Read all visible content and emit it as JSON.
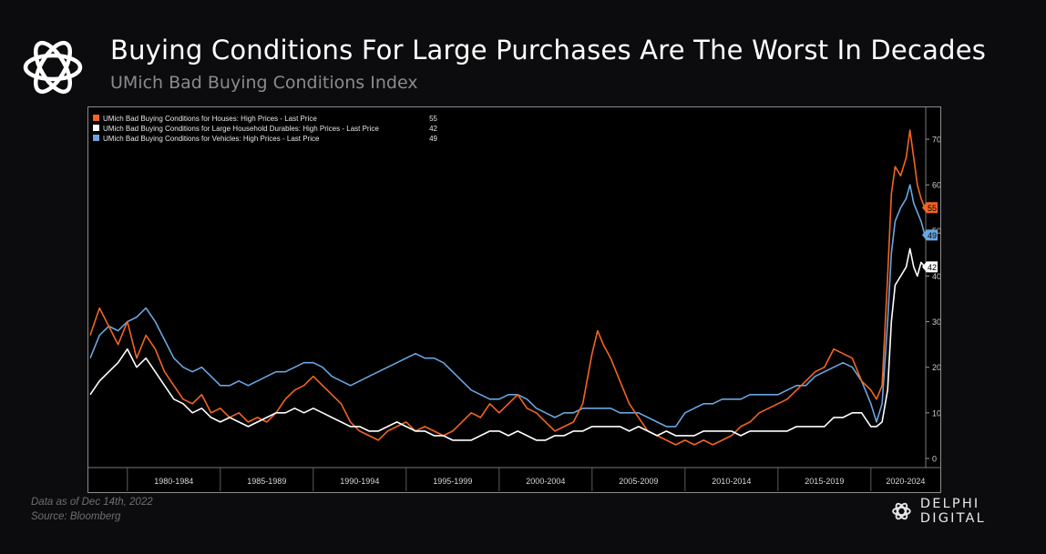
{
  "header": {
    "title": "Buying Conditions For Large Purchases Are The Worst In Decades",
    "subtitle": "UMich Bad Buying Conditions Index"
  },
  "footer": {
    "as_of": "Data as of Dec 14th, 2022",
    "source": "Source: Bloomberg",
    "brand": "DELPHI DIGITAL"
  },
  "colors": {
    "background": "#0c0c0e",
    "houses": "#f26522",
    "durables": "#ffffff",
    "vehicles": "#6aa6e0"
  },
  "chart_data": {
    "type": "line",
    "title": "",
    "xlabel": "",
    "ylabel": "",
    "x_range": [
      1978.0,
      2022.9
    ],
    "ylim": [
      -2,
      76
    ],
    "y_ticks": [
      0,
      10,
      20,
      30,
      40,
      50,
      60,
      70
    ],
    "y_axis_side": "right",
    "grid": false,
    "legend_position": "top-left",
    "x_tick_labels": [
      "1980-1984",
      "1985-1989",
      "1990-1994",
      "1995-1999",
      "2000-2004",
      "2005-2009",
      "2010-2014",
      "2015-2019",
      "2020-2024"
    ],
    "series": [
      {
        "name": "UMich Bad Buying Conditions for Houses: High Prices - Last Price",
        "last_value": "55",
        "color": "#f26522",
        "points": [
          [
            1978.0,
            27
          ],
          [
            1978.5,
            33
          ],
          [
            1979.0,
            29
          ],
          [
            1979.5,
            25
          ],
          [
            1980.0,
            30
          ],
          [
            1980.5,
            22
          ],
          [
            1981.0,
            27
          ],
          [
            1981.5,
            24
          ],
          [
            1982.0,
            19
          ],
          [
            1982.5,
            16
          ],
          [
            1983.0,
            13
          ],
          [
            1983.5,
            12
          ],
          [
            1984.0,
            14
          ],
          [
            1984.5,
            10
          ],
          [
            1985.0,
            11
          ],
          [
            1985.5,
            9
          ],
          [
            1986.0,
            10
          ],
          [
            1986.5,
            8
          ],
          [
            1987.0,
            9
          ],
          [
            1987.5,
            8
          ],
          [
            1988.0,
            10
          ],
          [
            1988.5,
            13
          ],
          [
            1989.0,
            15
          ],
          [
            1989.5,
            16
          ],
          [
            1990.0,
            18
          ],
          [
            1990.5,
            16
          ],
          [
            1991.0,
            14
          ],
          [
            1991.5,
            12
          ],
          [
            1992.0,
            8
          ],
          [
            1992.5,
            6
          ],
          [
            1993.0,
            5
          ],
          [
            1993.5,
            4
          ],
          [
            1994.0,
            6
          ],
          [
            1994.5,
            7
          ],
          [
            1995.0,
            8
          ],
          [
            1995.5,
            6
          ],
          [
            1996.0,
            7
          ],
          [
            1996.5,
            6
          ],
          [
            1997.0,
            5
          ],
          [
            1997.5,
            6
          ],
          [
            1998.0,
            8
          ],
          [
            1998.5,
            10
          ],
          [
            1999.0,
            9
          ],
          [
            1999.5,
            12
          ],
          [
            2000.0,
            10
          ],
          [
            2000.5,
            12
          ],
          [
            2001.0,
            14
          ],
          [
            2001.5,
            11
          ],
          [
            2002.0,
            10
          ],
          [
            2002.5,
            8
          ],
          [
            2003.0,
            6
          ],
          [
            2003.5,
            7
          ],
          [
            2004.0,
            8
          ],
          [
            2004.5,
            12
          ],
          [
            2005.0,
            23
          ],
          [
            2005.3,
            28
          ],
          [
            2005.6,
            25
          ],
          [
            2006.0,
            22
          ],
          [
            2006.5,
            17
          ],
          [
            2007.0,
            12
          ],
          [
            2007.5,
            9
          ],
          [
            2008.0,
            6
          ],
          [
            2008.5,
            5
          ],
          [
            2009.0,
            4
          ],
          [
            2009.5,
            3
          ],
          [
            2010.0,
            4
          ],
          [
            2010.5,
            3
          ],
          [
            2011.0,
            4
          ],
          [
            2011.5,
            3
          ],
          [
            2012.0,
            4
          ],
          [
            2012.5,
            5
          ],
          [
            2013.0,
            7
          ],
          [
            2013.5,
            8
          ],
          [
            2014.0,
            10
          ],
          [
            2014.5,
            11
          ],
          [
            2015.0,
            12
          ],
          [
            2015.5,
            13
          ],
          [
            2016.0,
            15
          ],
          [
            2016.5,
            17
          ],
          [
            2017.0,
            19
          ],
          [
            2017.5,
            20
          ],
          [
            2018.0,
            24
          ],
          [
            2018.5,
            23
          ],
          [
            2019.0,
            22
          ],
          [
            2019.5,
            17
          ],
          [
            2020.0,
            15
          ],
          [
            2020.3,
            13
          ],
          [
            2020.6,
            16
          ],
          [
            2020.9,
            40
          ],
          [
            2021.1,
            58
          ],
          [
            2021.3,
            64
          ],
          [
            2021.6,
            62
          ],
          [
            2021.9,
            66
          ],
          [
            2022.1,
            72
          ],
          [
            2022.3,
            66
          ],
          [
            2022.5,
            60
          ],
          [
            2022.7,
            57
          ],
          [
            2022.9,
            55
          ]
        ]
      },
      {
        "name": "UMich Bad Buying Conditions for Large Household Durables: High Prices - Last Price",
        "last_value": "42",
        "color": "#ffffff",
        "points": [
          [
            1978.0,
            14
          ],
          [
            1978.5,
            17
          ],
          [
            1979.0,
            19
          ],
          [
            1979.5,
            21
          ],
          [
            1980.0,
            24
          ],
          [
            1980.5,
            20
          ],
          [
            1981.0,
            22
          ],
          [
            1981.5,
            19
          ],
          [
            1982.0,
            16
          ],
          [
            1982.5,
            13
          ],
          [
            1983.0,
            12
          ],
          [
            1983.5,
            10
          ],
          [
            1984.0,
            11
          ],
          [
            1984.5,
            9
          ],
          [
            1985.0,
            8
          ],
          [
            1985.5,
            9
          ],
          [
            1986.0,
            8
          ],
          [
            1986.5,
            7
          ],
          [
            1987.0,
            8
          ],
          [
            1987.5,
            9
          ],
          [
            1988.0,
            10
          ],
          [
            1988.5,
            10
          ],
          [
            1989.0,
            11
          ],
          [
            1989.5,
            10
          ],
          [
            1990.0,
            11
          ],
          [
            1990.5,
            10
          ],
          [
            1991.0,
            9
          ],
          [
            1991.5,
            8
          ],
          [
            1992.0,
            7
          ],
          [
            1992.5,
            7
          ],
          [
            1993.0,
            6
          ],
          [
            1993.5,
            6
          ],
          [
            1994.0,
            7
          ],
          [
            1994.5,
            8
          ],
          [
            1995.0,
            7
          ],
          [
            1995.5,
            6
          ],
          [
            1996.0,
            6
          ],
          [
            1996.5,
            5
          ],
          [
            1997.0,
            5
          ],
          [
            1997.5,
            4
          ],
          [
            1998.0,
            4
          ],
          [
            1998.5,
            4
          ],
          [
            1999.0,
            5
          ],
          [
            1999.5,
            6
          ],
          [
            2000.0,
            6
          ],
          [
            2000.5,
            5
          ],
          [
            2001.0,
            6
          ],
          [
            2001.5,
            5
          ],
          [
            2002.0,
            4
          ],
          [
            2002.5,
            4
          ],
          [
            2003.0,
            5
          ],
          [
            2003.5,
            5
          ],
          [
            2004.0,
            6
          ],
          [
            2004.5,
            6
          ],
          [
            2005.0,
            7
          ],
          [
            2005.5,
            7
          ],
          [
            2006.0,
            7
          ],
          [
            2006.5,
            7
          ],
          [
            2007.0,
            6
          ],
          [
            2007.5,
            7
          ],
          [
            2008.0,
            6
          ],
          [
            2008.5,
            5
          ],
          [
            2009.0,
            6
          ],
          [
            2009.5,
            5
          ],
          [
            2010.0,
            5
          ],
          [
            2010.5,
            5
          ],
          [
            2011.0,
            6
          ],
          [
            2011.5,
            6
          ],
          [
            2012.0,
            6
          ],
          [
            2012.5,
            6
          ],
          [
            2013.0,
            5
          ],
          [
            2013.5,
            6
          ],
          [
            2014.0,
            6
          ],
          [
            2014.5,
            6
          ],
          [
            2015.0,
            6
          ],
          [
            2015.5,
            6
          ],
          [
            2016.0,
            7
          ],
          [
            2016.5,
            7
          ],
          [
            2017.0,
            7
          ],
          [
            2017.5,
            7
          ],
          [
            2018.0,
            9
          ],
          [
            2018.5,
            9
          ],
          [
            2019.0,
            10
          ],
          [
            2019.5,
            10
          ],
          [
            2020.0,
            7
          ],
          [
            2020.3,
            7
          ],
          [
            2020.6,
            8
          ],
          [
            2020.9,
            15
          ],
          [
            2021.1,
            30
          ],
          [
            2021.3,
            38
          ],
          [
            2021.6,
            40
          ],
          [
            2021.9,
            42
          ],
          [
            2022.1,
            46
          ],
          [
            2022.3,
            42
          ],
          [
            2022.5,
            40
          ],
          [
            2022.7,
            43
          ],
          [
            2022.9,
            42
          ]
        ]
      },
      {
        "name": "UMich Bad Buying Conditions for Vehicles: High Prices - Last Price",
        "last_value": "49",
        "color": "#6aa6e0",
        "points": [
          [
            1978.0,
            22
          ],
          [
            1978.5,
            27
          ],
          [
            1979.0,
            29
          ],
          [
            1979.5,
            28
          ],
          [
            1980.0,
            30
          ],
          [
            1980.5,
            31
          ],
          [
            1981.0,
            33
          ],
          [
            1981.5,
            30
          ],
          [
            1982.0,
            26
          ],
          [
            1982.5,
            22
          ],
          [
            1983.0,
            20
          ],
          [
            1983.5,
            19
          ],
          [
            1984.0,
            20
          ],
          [
            1984.5,
            18
          ],
          [
            1985.0,
            16
          ],
          [
            1985.5,
            16
          ],
          [
            1986.0,
            17
          ],
          [
            1986.5,
            16
          ],
          [
            1987.0,
            17
          ],
          [
            1987.5,
            18
          ],
          [
            1988.0,
            19
          ],
          [
            1988.5,
            19
          ],
          [
            1989.0,
            20
          ],
          [
            1989.5,
            21
          ],
          [
            1990.0,
            21
          ],
          [
            1990.5,
            20
          ],
          [
            1991.0,
            18
          ],
          [
            1991.5,
            17
          ],
          [
            1992.0,
            16
          ],
          [
            1992.5,
            17
          ],
          [
            1993.0,
            18
          ],
          [
            1993.5,
            19
          ],
          [
            1994.0,
            20
          ],
          [
            1994.5,
            21
          ],
          [
            1995.0,
            22
          ],
          [
            1995.5,
            23
          ],
          [
            1996.0,
            22
          ],
          [
            1996.5,
            22
          ],
          [
            1997.0,
            21
          ],
          [
            1997.5,
            19
          ],
          [
            1998.0,
            17
          ],
          [
            1998.5,
            15
          ],
          [
            1999.0,
            14
          ],
          [
            1999.5,
            13
          ],
          [
            2000.0,
            13
          ],
          [
            2000.5,
            14
          ],
          [
            2001.0,
            14
          ],
          [
            2001.5,
            13
          ],
          [
            2002.0,
            11
          ],
          [
            2002.5,
            10
          ],
          [
            2003.0,
            9
          ],
          [
            2003.5,
            10
          ],
          [
            2004.0,
            10
          ],
          [
            2004.5,
            11
          ],
          [
            2005.0,
            11
          ],
          [
            2005.5,
            11
          ],
          [
            2006.0,
            11
          ],
          [
            2006.5,
            10
          ],
          [
            2007.0,
            10
          ],
          [
            2007.5,
            10
          ],
          [
            2008.0,
            9
          ],
          [
            2008.5,
            8
          ],
          [
            2009.0,
            7
          ],
          [
            2009.5,
            7
          ],
          [
            2010.0,
            10
          ],
          [
            2010.5,
            11
          ],
          [
            2011.0,
            12
          ],
          [
            2011.5,
            12
          ],
          [
            2012.0,
            13
          ],
          [
            2012.5,
            13
          ],
          [
            2013.0,
            13
          ],
          [
            2013.5,
            14
          ],
          [
            2014.0,
            14
          ],
          [
            2014.5,
            14
          ],
          [
            2015.0,
            14
          ],
          [
            2015.5,
            15
          ],
          [
            2016.0,
            16
          ],
          [
            2016.5,
            16
          ],
          [
            2017.0,
            18
          ],
          [
            2017.5,
            19
          ],
          [
            2018.0,
            20
          ],
          [
            2018.5,
            21
          ],
          [
            2019.0,
            20
          ],
          [
            2019.5,
            17
          ],
          [
            2020.0,
            12
          ],
          [
            2020.3,
            8
          ],
          [
            2020.6,
            12
          ],
          [
            2020.9,
            30
          ],
          [
            2021.1,
            45
          ],
          [
            2021.3,
            52
          ],
          [
            2021.6,
            55
          ],
          [
            2021.9,
            57
          ],
          [
            2022.1,
            60
          ],
          [
            2022.3,
            56
          ],
          [
            2022.5,
            54
          ],
          [
            2022.7,
            52
          ],
          [
            2022.9,
            49
          ]
        ]
      }
    ]
  }
}
